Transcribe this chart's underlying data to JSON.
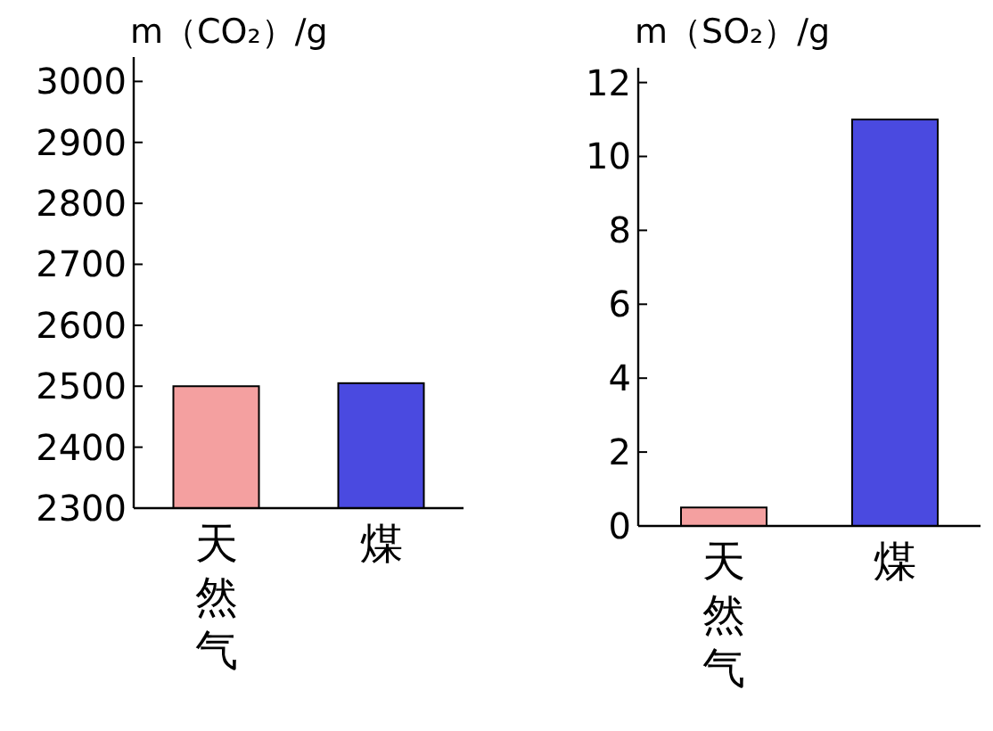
{
  "chart_data": [
    {
      "type": "bar",
      "ylabel": "m（CO₂）/g",
      "categories": [
        "天然气",
        "煤"
      ],
      "values": [
        2500,
        2505
      ],
      "colors": [
        "#f4a0a0",
        "#4a4ae0"
      ],
      "ylim": [
        2300,
        3040
      ],
      "yticks": [
        2300,
        2400,
        2500,
        2600,
        2700,
        2800,
        2900,
        3000
      ]
    },
    {
      "type": "bar",
      "ylabel": "m（SO₂）/g",
      "categories": [
        "天然气",
        "煤"
      ],
      "values": [
        0.5,
        11
      ],
      "colors": [
        "#f4a0a0",
        "#4a4ae0"
      ],
      "ylim": [
        0,
        12.4
      ],
      "yticks": [
        0,
        2,
        4,
        6,
        8,
        10,
        12
      ]
    }
  ]
}
